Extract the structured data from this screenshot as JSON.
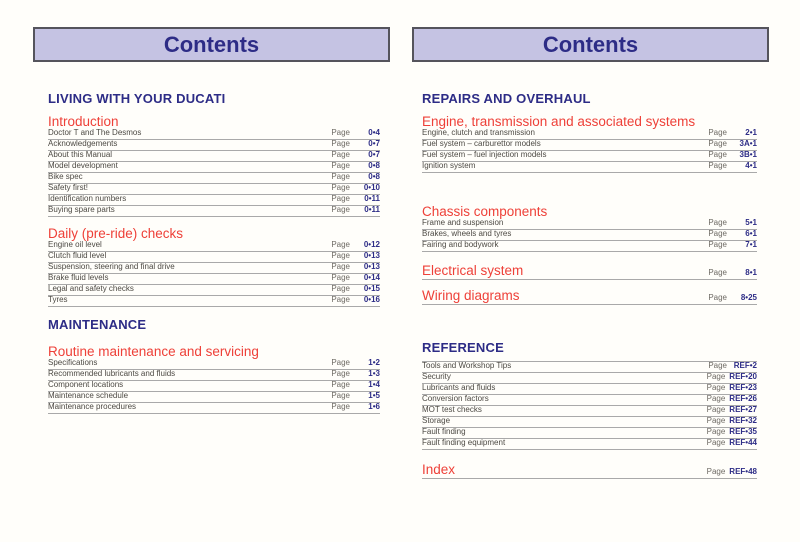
{
  "labels": {
    "page": "Page"
  },
  "colors": {
    "navy": "#2d2c86",
    "red": "#ee4038",
    "header_bg": "#c5c3e3",
    "header_border": "#55545c",
    "rule": "#a9a9a9",
    "entry_text": "#4c4943",
    "page_word": "#6e6a64",
    "background": "#fffefa"
  },
  "left_page": {
    "header_title": "Contents",
    "part_living": "LIVING WITH YOUR DUCATI",
    "introduction": {
      "title": "Introduction",
      "rows": [
        {
          "label": "Doctor T and The Desmos",
          "page": "0•4"
        },
        {
          "label": "Acknowledgements",
          "page": "0•7"
        },
        {
          "label": "About this Manual",
          "page": "0•7"
        },
        {
          "label": "Model development",
          "page": "0•8"
        },
        {
          "label": "Bike spec",
          "page": "0•8"
        },
        {
          "label": "Safety first!",
          "page": "0•10"
        },
        {
          "label": "Identification numbers",
          "page": "0•11"
        },
        {
          "label": "Buying spare parts",
          "page": "0•11"
        }
      ]
    },
    "daily_checks": {
      "title": "Daily (pre-ride) checks",
      "rows": [
        {
          "label": "Engine oil level",
          "page": "0•12"
        },
        {
          "label": "Clutch fluid level",
          "page": "0•13"
        },
        {
          "label": "Suspension, steering and final drive",
          "page": "0•13"
        },
        {
          "label": "Brake fluid levels",
          "page": "0•14"
        },
        {
          "label": "Legal and safety checks",
          "page": "0•15"
        },
        {
          "label": "Tyres",
          "page": "0•16"
        }
      ]
    },
    "part_maintenance": "MAINTENANCE",
    "routine": {
      "title": "Routine maintenance and servicing",
      "rows": [
        {
          "label": "Specifications",
          "page": "1•2"
        },
        {
          "label": "Recommended lubricants and fluids",
          "page": "1•3"
        },
        {
          "label": "Component locations",
          "page": "1•4"
        },
        {
          "label": "Maintenance schedule",
          "page": "1•5"
        },
        {
          "label": "Maintenance procedures",
          "page": "1•6"
        }
      ]
    }
  },
  "right_page": {
    "header_title": "Contents",
    "part_repairs": "REPAIRS AND OVERHAUL",
    "engine": {
      "title": "Engine, transmission and associated systems",
      "rows": [
        {
          "label": "Engine, clutch and transmission",
          "page": "2•1"
        },
        {
          "label": "Fuel system – carburettor models",
          "page": "3A•1"
        },
        {
          "label": "Fuel system – fuel injection models",
          "page": "3B•1"
        },
        {
          "label": "Ignition system",
          "page": "4•1"
        }
      ]
    },
    "chassis": {
      "title": "Chassis components",
      "rows": [
        {
          "label": "Frame and suspension",
          "page": "5•1"
        },
        {
          "label": "Brakes, wheels and tyres",
          "page": "6•1"
        },
        {
          "label": "Fairing and bodywork",
          "page": "7•1"
        }
      ]
    },
    "electrical": {
      "title": "Electrical system",
      "page": "8•1"
    },
    "wiring": {
      "title": "Wiring diagrams",
      "page": "8•25"
    },
    "part_reference": "REFERENCE",
    "reference": {
      "rows": [
        {
          "label": "Tools and Workshop Tips",
          "page": "REF•2"
        },
        {
          "label": "Security",
          "page": "REF•20"
        },
        {
          "label": "Lubricants and fluids",
          "page": "REF•23"
        },
        {
          "label": "Conversion factors",
          "page": "REF•26"
        },
        {
          "label": "MOT test checks",
          "page": "REF•27"
        },
        {
          "label": "Storage",
          "page": "REF•32"
        },
        {
          "label": "Fault finding",
          "page": "REF•35"
        },
        {
          "label": "Fault finding equipment",
          "page": "REF•44"
        }
      ]
    },
    "index": {
      "title": "Index",
      "page": "REF•48"
    }
  }
}
